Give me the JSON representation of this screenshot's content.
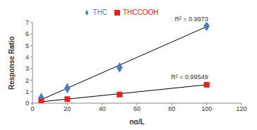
{
  "chart_data": {
    "type": "scatter",
    "x_label": "ng/L",
    "y_label": "Response Ratio",
    "xlim": [
      0,
      120
    ],
    "xticks": [
      0,
      20,
      40,
      60,
      80,
      100,
      120
    ],
    "ylim": [
      0,
      7
    ],
    "yticks": [
      0,
      1,
      2,
      3,
      4,
      5,
      6,
      7
    ],
    "grid": false,
    "legend": "top",
    "series": [
      {
        "name": "THC",
        "color": "#4a7ebb",
        "marker": "diamond",
        "x": [
          5,
          20,
          50,
          100
        ],
        "values": [
          0.45,
          1.3,
          3.1,
          6.7
        ],
        "trendline": {
          "x": [
            5,
            100
          ],
          "values": [
            0.3,
            6.65
          ]
        },
        "annotation": "R² = 0.9973"
      },
      {
        "name": "THCCOOH",
        "color": "#e2231a",
        "marker": "square",
        "x": [
          5,
          20,
          50,
          100
        ],
        "values": [
          0.15,
          0.35,
          0.75,
          1.6
        ],
        "trendline": {
          "x": [
            5,
            100
          ],
          "values": [
            0.12,
            1.6
          ]
        },
        "annotation": "R² = 0.99549"
      }
    ]
  }
}
